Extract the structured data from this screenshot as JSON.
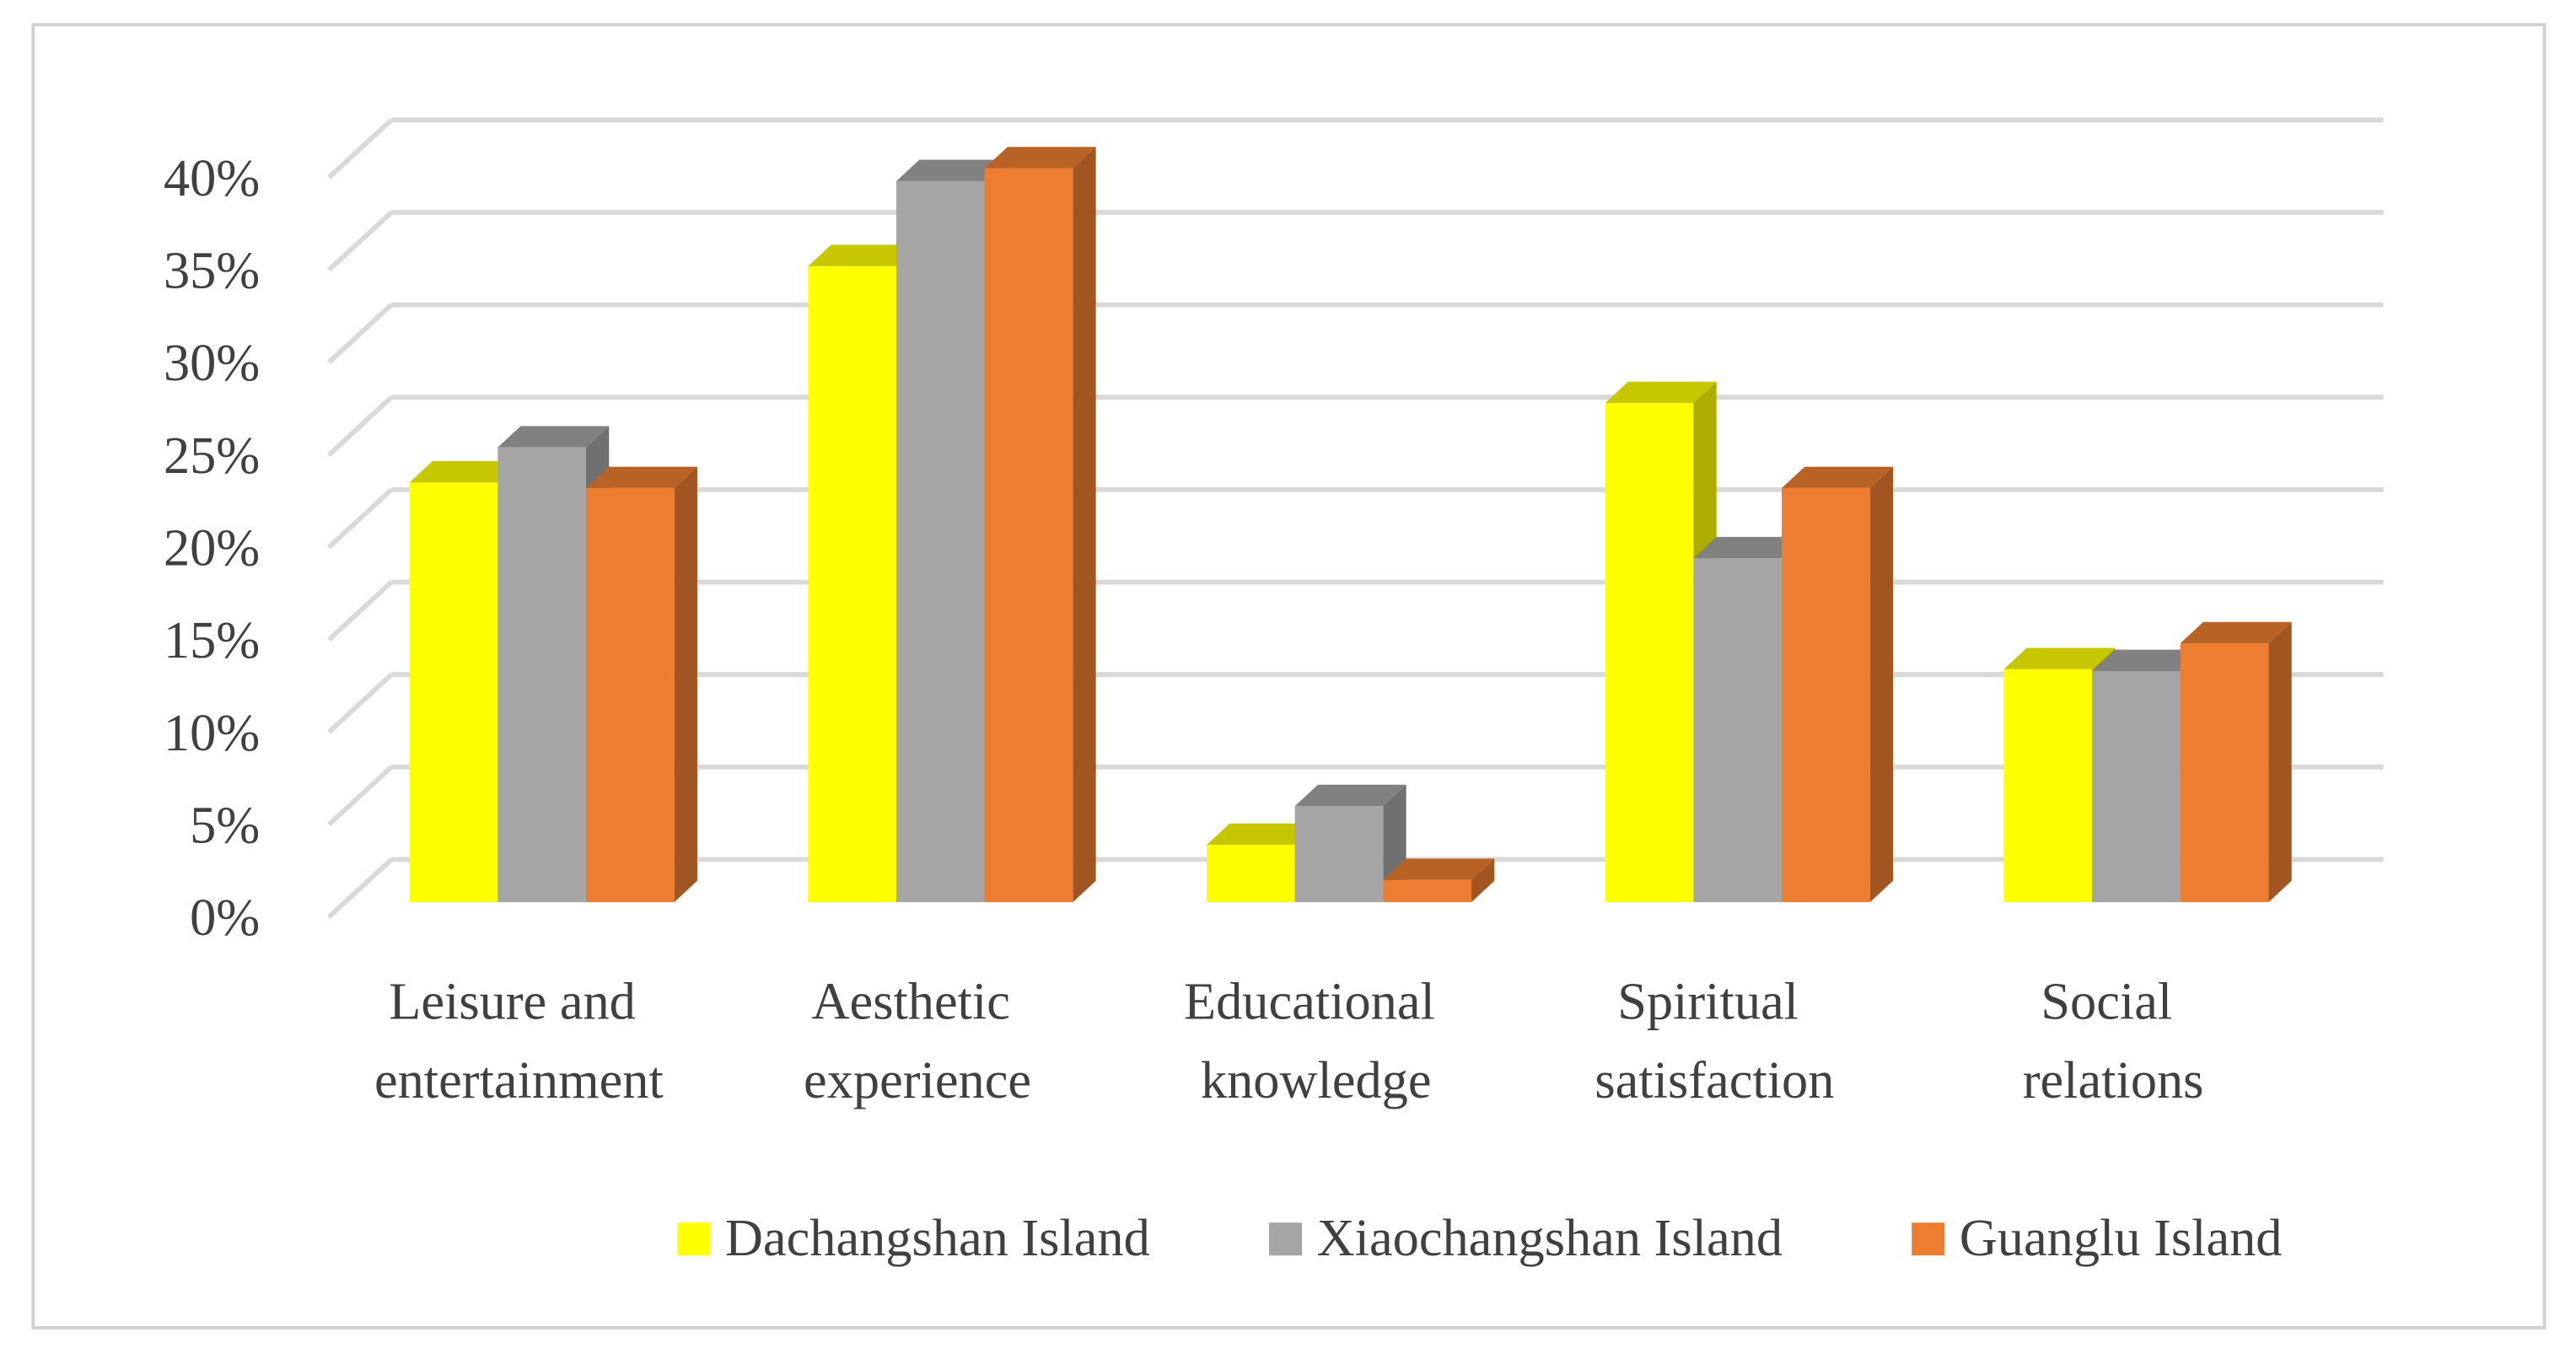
{
  "chart_data": {
    "type": "bar3d",
    "categories": [
      "Leisure and entertainment",
      "Aesthetic experience",
      "Educational knowledge",
      "Spiritual satisfaction",
      "Social relations"
    ],
    "series": [
      {
        "name": "Dachangshan Island",
        "color": "#ffff00",
        "values": [
          22.7,
          34.4,
          3.1,
          27.0,
          12.6
        ]
      },
      {
        "name": "Xiaochangshan Island",
        "color": "#a5a5a5",
        "values": [
          24.6,
          39.0,
          5.2,
          18.6,
          12.5
        ]
      },
      {
        "name": "Guanglu Island",
        "color": "#ed7d31",
        "values": [
          22.4,
          39.7,
          1.2,
          22.4,
          14.0
        ]
      }
    ],
    "ylim": [
      0,
      40
    ],
    "yticks": [
      {
        "value": 0,
        "label": "0%"
      },
      {
        "value": 5,
        "label": "5%"
      },
      {
        "value": 10,
        "label": "10%"
      },
      {
        "value": 15,
        "label": "15%"
      },
      {
        "value": 20,
        "label": "20%"
      },
      {
        "value": 25,
        "label": "25%"
      },
      {
        "value": 30,
        "label": "30%"
      },
      {
        "value": 35,
        "label": "35%"
      },
      {
        "value": 40,
        "label": "40%"
      }
    ],
    "grid": true,
    "legend": "bottom"
  }
}
